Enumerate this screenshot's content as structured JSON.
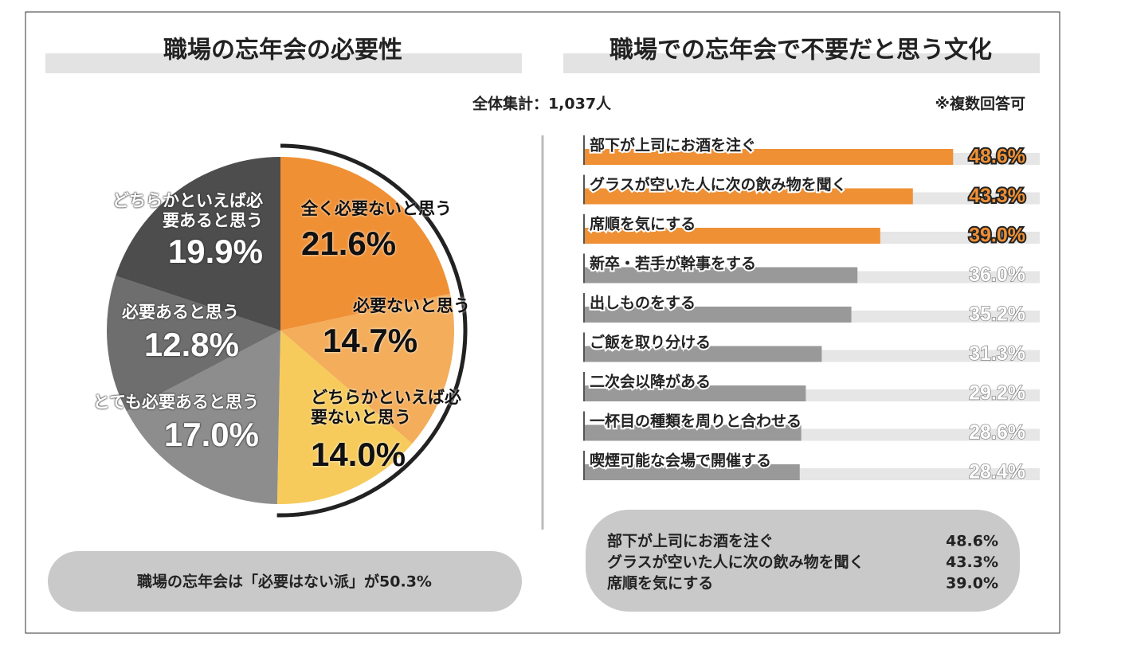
{
  "subtitle": "全体集計：1,037人",
  "chart_data": [
    {
      "type": "pie",
      "title": "職場の忘年会の必要性",
      "categories": [
        "全く必要ないと思う",
        "必要ないと思う",
        "どちらかといえば必要ないと思う",
        "とても必要あると思う",
        "必要あると思う",
        "どちらかといえば必要あると思う"
      ],
      "values": [
        21.6,
        14.7,
        14.0,
        17.0,
        12.8,
        19.9
      ],
      "value_labels": [
        "21.6%",
        "14.7%",
        "14.0%",
        "17.0%",
        "12.8%",
        "19.9%"
      ],
      "colors": [
        "#ef9035",
        "#f3ad5b",
        "#f6cb5c",
        "#8d8d8d",
        "#6e6e6e",
        "#4d4d4d"
      ],
      "annotation": "職場の忘年会は「必要はない派」が50.3%"
    },
    {
      "type": "hbar",
      "title": "職場での忘年会で不要だと思う文化",
      "annotation": "※複数回答可",
      "categories": [
        "部下が上司にお酒を注ぐ",
        "グラスが空いた人に次の飲み物を聞く",
        "席順を気にする",
        "新卒・若手が幹事をする",
        "出しものをする",
        "ご飯を取り分ける",
        "二次会以降がある",
        "一杯目の種類を周りと合わせる",
        "喫煙可能な会場で開催する"
      ],
      "values": [
        48.6,
        43.3,
        39.0,
        36.0,
        35.2,
        31.3,
        29.2,
        28.6,
        28.4
      ],
      "value_labels": [
        "48.6%",
        "43.3%",
        "39.0%",
        "36.0%",
        "35.2%",
        "31.3%",
        "29.2%",
        "28.6%",
        "28.4%"
      ],
      "colors": [
        "#ef9035",
        "#ef9035",
        "#ef9035",
        "#999999",
        "#999999",
        "#999999",
        "#999999",
        "#999999",
        "#999999"
      ],
      "xlim": [
        0,
        60
      ],
      "summary": [
        {
          "label": "部下が上司にお酒を注ぐ",
          "value": "48.6%"
        },
        {
          "label": "グラスが空いた人に次の飲み物を聞く",
          "value": "43.3%"
        },
        {
          "label": "席順を気にする",
          "value": "39.0%"
        }
      ]
    }
  ]
}
